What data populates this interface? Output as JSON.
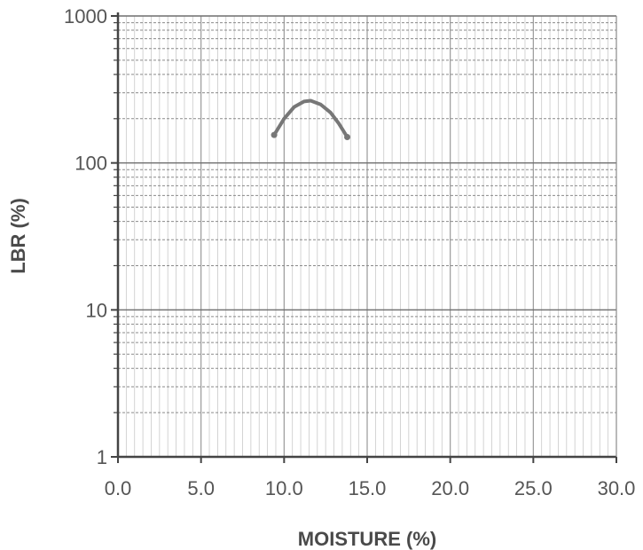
{
  "chart_data": {
    "type": "line",
    "title": "",
    "xlabel": "MOISTURE (%)",
    "ylabel": "LBR (%)",
    "xlim": [
      0,
      30
    ],
    "ylim": [
      1,
      1000
    ],
    "yscale": "log",
    "grid": true,
    "x_ticks": [
      "0.0",
      "5.0",
      "10.0",
      "15.0",
      "20.0",
      "25.0",
      "30.0"
    ],
    "y_ticks": [
      "1",
      "10",
      "100",
      "1000"
    ],
    "series": [
      {
        "x": [
          9.4,
          10.0,
          10.6,
          11.2,
          11.6,
          12.2,
          12.8,
          13.3,
          13.8
        ],
        "y": [
          155,
          200,
          240,
          262,
          265,
          250,
          220,
          185,
          150
        ],
        "color": "#777777"
      }
    ]
  }
}
